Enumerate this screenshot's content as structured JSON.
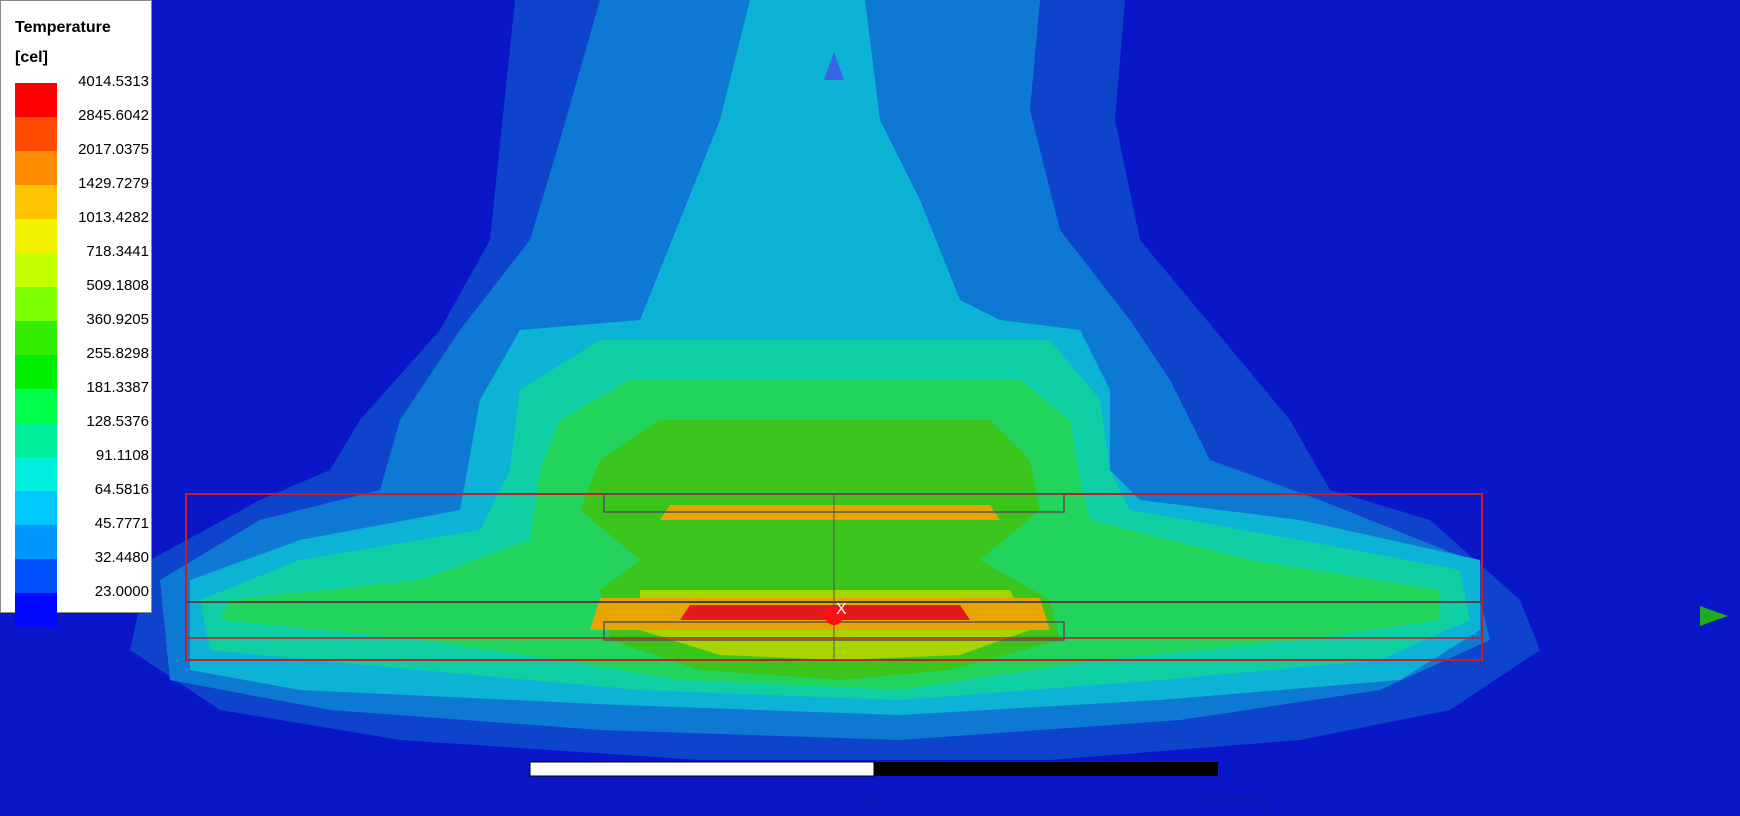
{
  "legend": {
    "title": "Temperature",
    "unit": "[cel]",
    "levels": [
      {
        "label": "4014.5313",
        "color": "#ff0000"
      },
      {
        "label": "2845.6042",
        "color": "#ff4a00"
      },
      {
        "label": "2017.0375",
        "color": "#ff8c00"
      },
      {
        "label": "1429.7279",
        "color": "#ffc400"
      },
      {
        "label": "1013.4282",
        "color": "#f2f200"
      },
      {
        "label": "718.3441",
        "color": "#c2ff00"
      },
      {
        "label": "509.1808",
        "color": "#7dff00"
      },
      {
        "label": "360.9205",
        "color": "#33ee00"
      },
      {
        "label": "255.8298",
        "color": "#00ee00"
      },
      {
        "label": "181.3387",
        "color": "#00ff4a"
      },
      {
        "label": "128.5376",
        "color": "#00ee99"
      },
      {
        "label": "91.1108",
        "color": "#00eedd"
      },
      {
        "label": "64.5816",
        "color": "#00c8ff"
      },
      {
        "label": "45.7771",
        "color": "#0096ff"
      },
      {
        "label": "32.4480",
        "color": "#0050ff"
      },
      {
        "label": "23.0000",
        "color": "#0008ff"
      }
    ]
  },
  "scale": {
    "tick_0": "0",
    "tick_mid": "150",
    "tick_end": "300 (mm)"
  },
  "contour_colors": {
    "background": "#0a17c8",
    "outer_blue": "#0e43cc",
    "light_blue": "#0e79d3",
    "cyan": "#0db3d4",
    "teal": "#0ecfa4",
    "green_light": "#22d45c",
    "green": "#3ac41c",
    "yellow_green": "#a8d400",
    "orange": "#e8a400",
    "red": "#e41a1a"
  }
}
